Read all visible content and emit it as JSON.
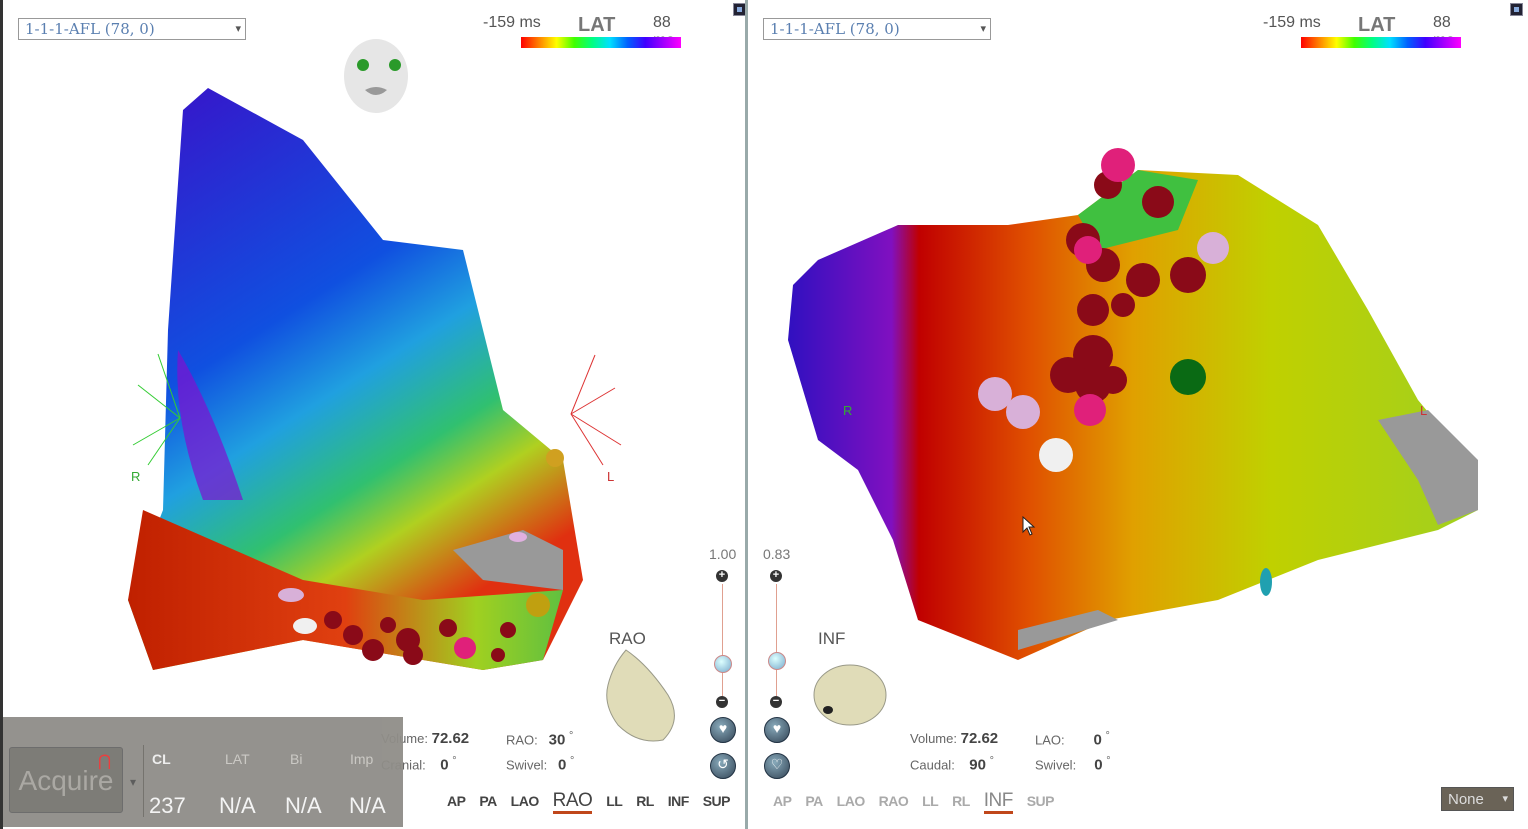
{
  "left": {
    "map_select": "1-1-1-AFL (78, 0)",
    "legend": {
      "min": "-159 ms",
      "label": "LAT",
      "max": "88 ms"
    },
    "orientation_label": "RAO",
    "zoom": "1.00",
    "stats": {
      "volume_label": "Volume:",
      "volume": "72.62",
      "angle1_label": "RAO:",
      "angle1": "30",
      "angle2_label": "Cranial:",
      "angle2": "0",
      "swivel_label": "Swivel:",
      "swivel": "0",
      "degree": "°"
    },
    "axis_r": "R",
    "axis_l": "L"
  },
  "right": {
    "map_select": "1-1-1-AFL (78, 0)",
    "legend": {
      "min": "-159 ms",
      "label": "LAT",
      "max": "88 ms"
    },
    "orientation_label": "INF",
    "zoom": "0.83",
    "stats": {
      "volume_label": "Volume:",
      "volume": "72.62",
      "angle1_label": "LAO:",
      "angle1": "0",
      "angle2_label": "Caudal:",
      "angle2": "90",
      "swivel_label": "Swivel:",
      "swivel": "0",
      "degree": "°"
    },
    "axis_r": "R",
    "axis_l": "L"
  },
  "view_buttons": [
    "AP",
    "PA",
    "LAO",
    "RAO",
    "LL",
    "RL",
    "INF",
    "SUP"
  ],
  "acquire": {
    "button": "Acquire",
    "headers": [
      "CL",
      "LAT",
      "Bi",
      "Imp"
    ],
    "values": [
      "237",
      "N/A",
      "N/A",
      "N/A"
    ]
  },
  "overlay_select": "None",
  "colors": {
    "accent_underline": "#c0471b",
    "panel": "#8f8d88"
  }
}
